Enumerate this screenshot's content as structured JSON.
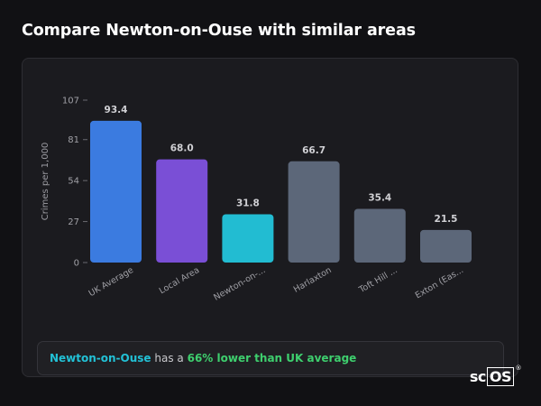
{
  "page": {
    "title": "Compare Newton-on-Ouse with similar areas"
  },
  "summary": {
    "area": "Newton-on-Ouse",
    "middle": " has a ",
    "stat": "66% lower than UK average"
  },
  "logo": {
    "prefix": "sc",
    "boxed": "OS",
    "mark": "®"
  },
  "chart_data": {
    "type": "bar",
    "ylabel": "Crimes per 1,000",
    "xlabel": "",
    "ylim": [
      0,
      107
    ],
    "yticks": [
      0,
      27,
      54,
      81,
      107
    ],
    "categories": [
      "UK Average",
      "Local Area",
      "Newton-on-...",
      "Harlaxton",
      "Toft Hill ...",
      "Exton (Eas..."
    ],
    "values": [
      93.4,
      68.0,
      31.8,
      66.7,
      35.4,
      21.5
    ],
    "value_labels": [
      "93.4",
      "68.0",
      "31.8",
      "66.7",
      "35.4",
      "21.5"
    ],
    "colors": [
      "#3b7be0",
      "#7a4fd6",
      "#22bcd2",
      "#5c6779",
      "#5c6779",
      "#5c6779"
    ],
    "grid": false,
    "legend": "none"
  }
}
